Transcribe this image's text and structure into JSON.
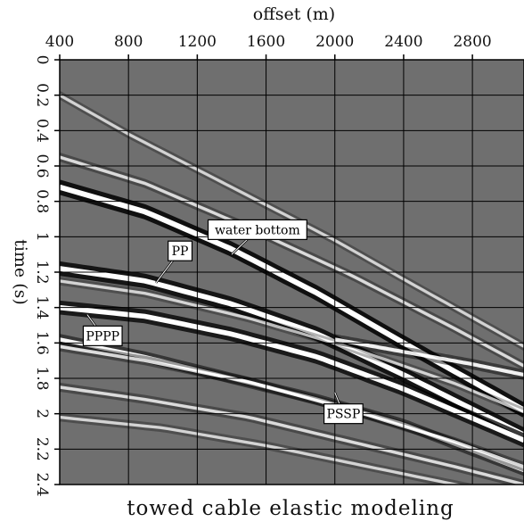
{
  "chart_data": {
    "type": "seismic section",
    "xlabel": "offset (m)",
    "ylabel": "time (s)",
    "caption": "towed cable elastic modeling",
    "xlim": [
      400,
      3100
    ],
    "ylim": [
      0,
      2.4
    ],
    "x_ticks": [
      "400",
      "800",
      "1200",
      "1600",
      "2000",
      "2400",
      "2800"
    ],
    "x_tick_values": [
      400,
      800,
      1200,
      1600,
      2000,
      2400,
      2800
    ],
    "y_ticks": [
      "0",
      "0.2",
      "0.4",
      "0.6",
      "0.8",
      "1",
      "1.2",
      "1.4",
      "1.6",
      "1.8",
      "2",
      "2.2",
      "2.4"
    ],
    "y_tick_values": [
      0,
      0.2,
      0.4,
      0.6,
      0.8,
      1.0,
      1.2,
      1.4,
      1.6,
      1.8,
      2.0,
      2.2,
      2.4
    ],
    "grid": true,
    "background": "#6f6f6f",
    "events": [
      {
        "label": "water bottom",
        "x": [
          400,
          900,
          1400,
          1900,
          2400,
          3100
        ],
        "y": [
          0.72,
          0.86,
          1.07,
          1.32,
          1.6,
          1.98
        ],
        "strength": 1.0,
        "label_at": [
          1400,
          1.1
        ],
        "box_at": [
          1550,
          0.96
        ]
      },
      {
        "label": "PP",
        "x": [
          400,
          900,
          1400,
          1900,
          2400,
          3100
        ],
        "y": [
          1.18,
          1.25,
          1.38,
          1.55,
          1.78,
          2.12
        ],
        "strength": 0.95,
        "label_at": [
          960,
          1.26
        ],
        "box_at": [
          1100,
          1.08
        ]
      },
      {
        "label": "PPPP",
        "x": [
          400,
          900,
          1400,
          1900,
          2400,
          3100
        ],
        "y": [
          1.4,
          1.45,
          1.55,
          1.68,
          1.86,
          2.15
        ],
        "strength": 0.9,
        "label_at": [
          560,
          1.44
        ],
        "box_at": [
          650,
          1.56
        ]
      },
      {
        "label": "PSSP",
        "x": [
          400,
          900,
          1400,
          1900,
          2400,
          3100
        ],
        "y": [
          1.58,
          1.68,
          1.8,
          1.92,
          2.06,
          2.32
        ],
        "strength": 0.6,
        "label_at": [
          2000,
          1.88
        ],
        "box_at": [
          2050,
          2.0
        ]
      },
      {
        "label": "",
        "x": [
          400,
          800,
          1200,
          1600,
          2000,
          2400,
          3100
        ],
        "y": [
          0.2,
          0.42,
          0.62,
          0.82,
          1.02,
          1.24,
          1.62
        ],
        "strength": 0.35
      },
      {
        "label": "",
        "x": [
          400,
          900,
          1500,
          2100,
          2700,
          3100
        ],
        "y": [
          0.55,
          0.7,
          0.95,
          1.22,
          1.52,
          1.73
        ],
        "strength": 0.4
      },
      {
        "label": "",
        "x": [
          400,
          900,
          1500,
          2100,
          2700,
          3100
        ],
        "y": [
          1.25,
          1.32,
          1.46,
          1.63,
          1.83,
          1.99
        ],
        "strength": 0.35
      },
      {
        "label": "",
        "x": [
          400,
          900,
          1500,
          2100,
          2700,
          3100
        ],
        "y": [
          1.62,
          1.7,
          1.82,
          1.98,
          2.16,
          2.3
        ],
        "strength": 0.45
      },
      {
        "label": "",
        "x": [
          400,
          900,
          1500,
          2100,
          2700,
          3100
        ],
        "y": [
          1.85,
          1.92,
          2.02,
          2.16,
          2.3,
          2.4
        ],
        "strength": 0.4
      },
      {
        "label": "",
        "x": [
          400,
          1000,
          1600,
          2200,
          2800,
          3100
        ],
        "y": [
          2.02,
          2.08,
          2.18,
          2.3,
          2.42,
          2.48
        ],
        "strength": 0.35
      },
      {
        "label": "",
        "x": [
          2000,
          2400,
          2800,
          3100
        ],
        "y": [
          1.58,
          1.65,
          1.72,
          1.78
        ],
        "strength": 0.55
      }
    ]
  }
}
